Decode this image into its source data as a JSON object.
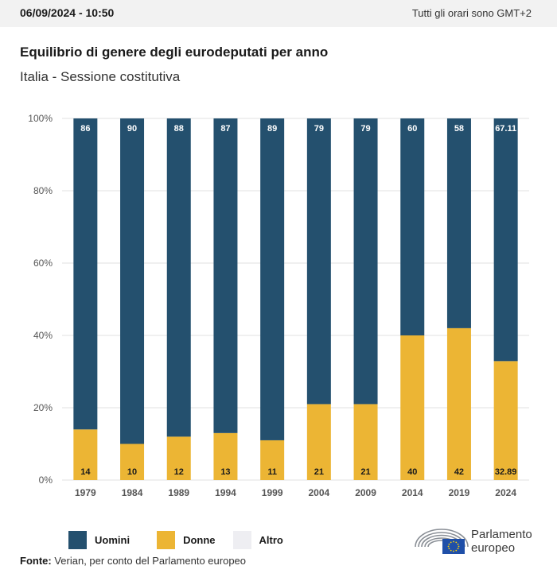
{
  "header": {
    "date": "06/09/2024 - 10:50",
    "timezone_note": "Tutti gli orari sono GMT+2"
  },
  "chart_title": "Equilibrio di genere degli eurodeputati per anno",
  "chart_subtitle": "Italia - Sessione costitutiva",
  "colors": {
    "uomini": "#24506e",
    "donne": "#ecb534",
    "altro": "#eeeef2",
    "grid": "#e2e2e2",
    "axis_text": "#555555"
  },
  "chart_data": {
    "type": "bar",
    "stacked": true,
    "categories": [
      "1979",
      "1984",
      "1989",
      "1994",
      "1999",
      "2004",
      "2009",
      "2014",
      "2019",
      "2024"
    ],
    "series": [
      {
        "name": "Donne",
        "values": [
          14,
          10,
          12,
          13,
          11,
          21,
          21,
          40,
          42,
          32.89
        ]
      },
      {
        "name": "Uomini",
        "values": [
          86,
          90,
          88,
          87,
          89,
          79,
          79,
          60,
          58,
          67.11
        ]
      },
      {
        "name": "Altro",
        "values": [
          0,
          0,
          0,
          0,
          0,
          0,
          0,
          0,
          0,
          0
        ]
      }
    ],
    "yticks": [
      "0%",
      "20%",
      "40%",
      "60%",
      "80%",
      "100%"
    ],
    "ylim": [
      0,
      100
    ],
    "grid": true,
    "legend_position": "bottom-left"
  },
  "legend": [
    {
      "label": "Uomini",
      "color": "#24506e"
    },
    {
      "label": "Donne",
      "color": "#ecb534"
    },
    {
      "label": "Altro",
      "color": "#eeeef2"
    }
  ],
  "source": {
    "label": "Fonte:",
    "text": "Verian, per conto del Parlamento europeo"
  },
  "logo": {
    "line1": "Parlamento",
    "line2": "europeo"
  }
}
